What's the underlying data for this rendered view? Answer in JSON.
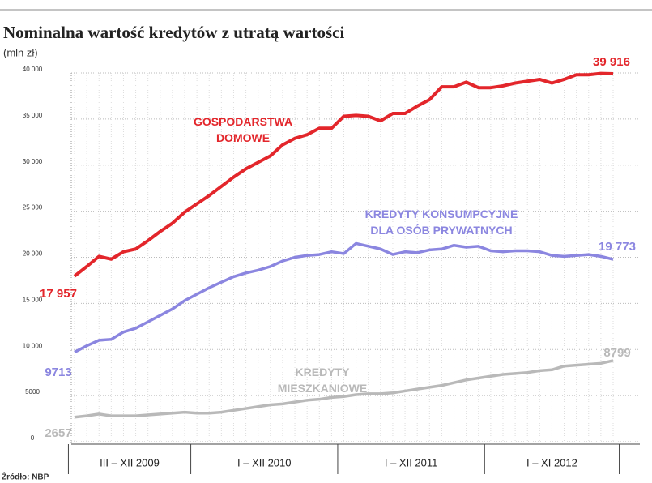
{
  "chart_data": {
    "type": "line",
    "title": "Nominalna wartość kredytów z utratą wartości",
    "subtitle": "(mln zł)",
    "source": "Źródło: NBP",
    "categories": [
      null,
      null,
      null,
      null,
      null,
      null,
      null,
      null,
      null,
      null,
      null,
      null,
      null,
      null,
      null,
      null,
      null,
      null,
      null,
      null,
      null,
      null,
      null,
      null,
      null,
      null,
      null,
      null,
      null,
      null,
      null,
      null,
      null,
      null,
      null,
      null,
      null,
      null,
      null,
      null,
      null,
      null,
      null,
      null,
      null
    ],
    "x_groups": [
      {
        "label": "III – XII 2009",
        "from": 0,
        "to": 9
      },
      {
        "label": "I – XII 2010",
        "from": 10,
        "to": 21
      },
      {
        "label": "I – XII 2011",
        "from": 22,
        "to": 33
      },
      {
        "label": "I – XI 2012",
        "from": 34,
        "to": 44
      }
    ],
    "ylim": [
      0,
      40000
    ],
    "yticks": [
      0,
      5000,
      {
        "value": 10000,
        "label": "10 000"
      },
      {
        "value": 15000,
        "label": "15 000"
      },
      {
        "value": 20000,
        "label": "20 000"
      },
      {
        "value": 25000,
        "label": "25 000"
      },
      {
        "value": 30000,
        "label": "30 000"
      },
      {
        "value": 35000,
        "label": "35 000"
      },
      {
        "value": 40000,
        "label": "40 000"
      }
    ],
    "grid": true,
    "series": [
      {
        "name": "GOSPODARSTWA\nDOMOWE",
        "color": "#e3262b",
        "values": [
          17957,
          19000,
          20100,
          19800,
          20600,
          20900,
          21800,
          22800,
          23700,
          24900,
          25800,
          26700,
          27700,
          28700,
          29600,
          30300,
          31000,
          32200,
          32900,
          33300,
          34000,
          34000,
          35300,
          35400,
          35300,
          34800,
          35600,
          35600,
          36400,
          37100,
          38500,
          38500,
          39000,
          38400,
          38400,
          38600,
          38900,
          39100,
          39300,
          38900,
          39300,
          39800,
          39800,
          39950,
          39916
        ],
        "value_labels": [
          "17 957",
          null,
          null,
          null,
          null,
          null,
          null,
          null,
          null,
          null,
          null,
          null,
          null,
          null,
          null,
          null,
          null,
          null,
          null,
          null,
          null,
          null,
          null,
          null,
          null,
          null,
          null,
          null,
          null,
          null,
          null,
          null,
          null,
          null,
          null,
          null,
          null,
          null,
          null,
          null,
          null,
          null,
          null,
          null,
          "39 916"
        ]
      },
      {
        "name": "KREDYTY KONSUMPCYJNE\nDLA OSÓB PRYWATNYCH",
        "color": "#8b86e0",
        "values": [
          9713,
          10400,
          11000,
          11100,
          11900,
          12300,
          13000,
          13700,
          14400,
          15300,
          16000,
          16700,
          17300,
          17900,
          18300,
          18600,
          19000,
          19600,
          20000,
          20200,
          20300,
          20600,
          20400,
          21500,
          21200,
          20900,
          20300,
          20600,
          20500,
          20800,
          20900,
          21300,
          21100,
          21200,
          20700,
          20600,
          20700,
          20700,
          20600,
          20200,
          20100,
          20200,
          20300,
          20100,
          19773
        ],
        "value_labels": [
          "9713",
          null,
          null,
          null,
          null,
          null,
          null,
          null,
          null,
          null,
          null,
          null,
          null,
          null,
          null,
          null,
          null,
          null,
          null,
          null,
          null,
          null,
          null,
          null,
          null,
          null,
          null,
          null,
          null,
          null,
          null,
          null,
          null,
          null,
          null,
          null,
          null,
          null,
          null,
          null,
          null,
          null,
          null,
          null,
          "19 773"
        ]
      },
      {
        "name": "KREDYTY\nMIESZKANIOWE",
        "color": "#b9b9b9",
        "values": [
          2657,
          2800,
          3000,
          2800,
          2800,
          2800,
          2900,
          3000,
          3100,
          3200,
          3100,
          3100,
          3200,
          3400,
          3600,
          3800,
          4000,
          4100,
          4300,
          4500,
          4600,
          4800,
          4900,
          5100,
          5200,
          5200,
          5300,
          5500,
          5700,
          5900,
          6100,
          6400,
          6700,
          6900,
          7100,
          7300,
          7400,
          7500,
          7700,
          7800,
          8200,
          8300,
          8400,
          8500,
          8799
        ],
        "value_labels": [
          "2657",
          null,
          null,
          null,
          null,
          null,
          null,
          null,
          null,
          null,
          null,
          null,
          null,
          null,
          null,
          null,
          null,
          null,
          null,
          null,
          null,
          null,
          null,
          null,
          null,
          null,
          null,
          null,
          null,
          null,
          null,
          null,
          null,
          null,
          null,
          null,
          null,
          null,
          null,
          null,
          null,
          null,
          null,
          null,
          "8799"
        ]
      }
    ]
  }
}
